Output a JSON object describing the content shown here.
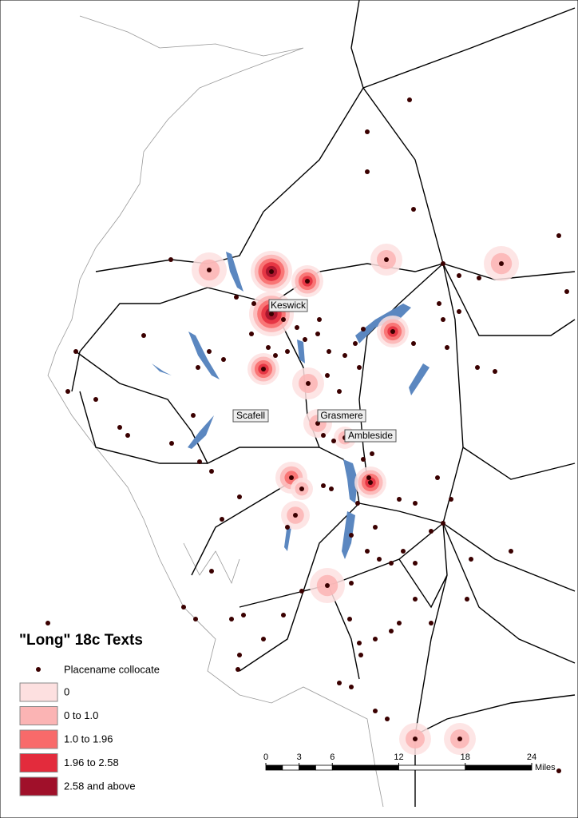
{
  "legend": {
    "title": "\"Long\" 18c Texts",
    "point": "Placename collocate",
    "classes": [
      "0",
      "0 to 1.0",
      "1.0 to 1.96",
      "1.96 to 2.58",
      "2.58 and above"
    ]
  },
  "places": [
    "Keswick",
    "Scafell",
    "Grasmere",
    "Ambleside"
  ],
  "scale": {
    "ticks": [
      0,
      3,
      6,
      12,
      18,
      24
    ],
    "unit": "Miles"
  }
}
